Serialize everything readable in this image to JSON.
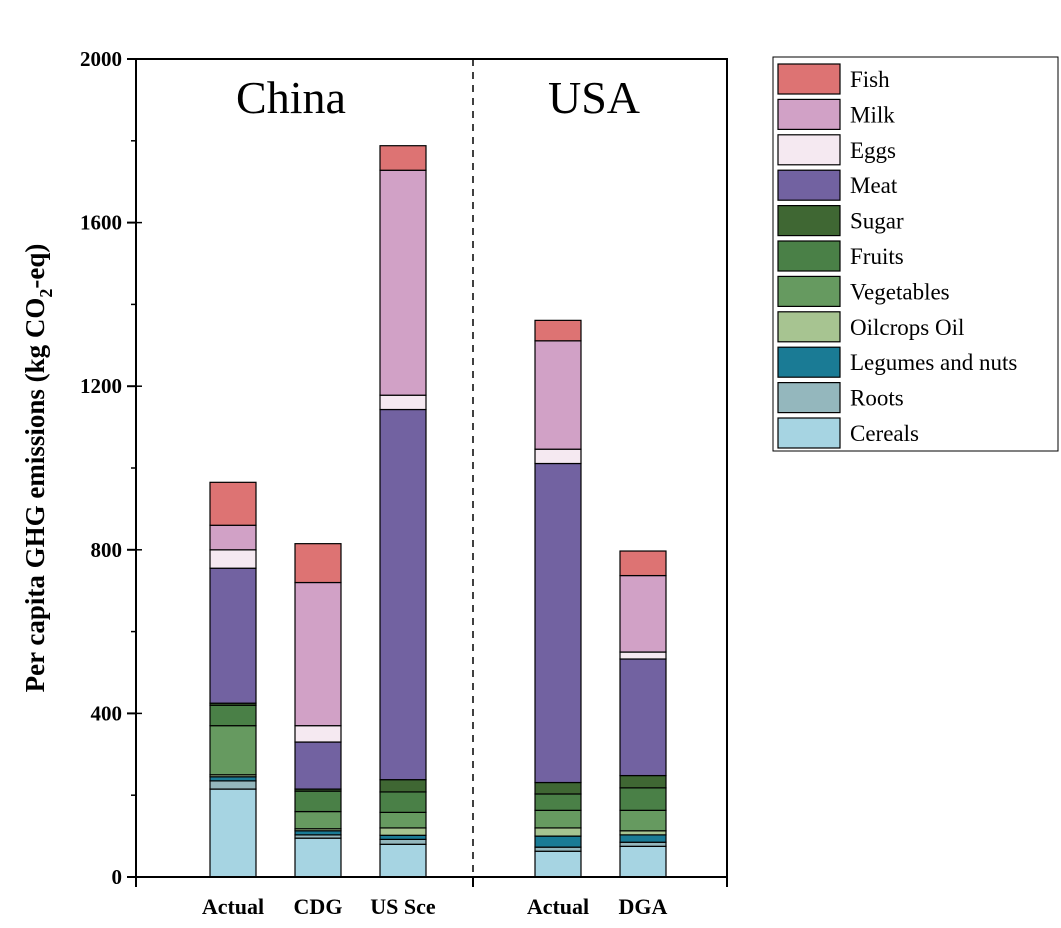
{
  "chart_data": {
    "type": "bar",
    "stacked": true,
    "ylabel_main": "Per capita GHG emissions (kg CO",
    "ylabel_sub": "2",
    "ylabel_end": "-eq)",
    "ylim": [
      0,
      2000
    ],
    "yticks": [
      0,
      400,
      800,
      1200,
      1600,
      2000
    ],
    "ytick_labels": [
      "0",
      "400",
      "800",
      "1200",
      "1600",
      "2000"
    ],
    "groups": [
      {
        "name": "China",
        "categories": [
          "Actual",
          "CDG",
          "US Sce"
        ]
      },
      {
        "name": "USA",
        "categories": [
          "Actual",
          "DGA"
        ]
      }
    ],
    "categories": [
      "Actual",
      "CDG",
      "US Sce",
      "Actual",
      "DGA"
    ],
    "series": [
      {
        "name": "Cereals",
        "color": "#a6d4e2",
        "values": [
          215,
          95,
          80,
          63,
          75
        ]
      },
      {
        "name": "Roots",
        "color": "#94b7bd",
        "values": [
          20,
          8,
          12,
          10,
          10
        ]
      },
      {
        "name": "Legumes and nuts",
        "color": "#1a7b95",
        "values": [
          10,
          10,
          10,
          27,
          18
        ]
      },
      {
        "name": "Oilcrops Oil",
        "color": "#a7c491",
        "values": [
          5,
          5,
          18,
          20,
          10
        ]
      },
      {
        "name": "Vegetables",
        "color": "#669a60",
        "values": [
          120,
          42,
          38,
          43,
          50
        ]
      },
      {
        "name": "Fruits",
        "color": "#4a8047",
        "values": [
          50,
          50,
          50,
          40,
          55
        ]
      },
      {
        "name": "Sugar",
        "color": "#3f6733",
        "values": [
          5,
          5,
          30,
          28,
          30
        ]
      },
      {
        "name": "Meat",
        "color": "#7262a1",
        "values": [
          330,
          115,
          905,
          780,
          285
        ]
      },
      {
        "name": "Eggs",
        "color": "#f5e9f1",
        "values": [
          45,
          40,
          35,
          35,
          17
        ]
      },
      {
        "name": "Milk",
        "color": "#d1a1c6",
        "values": [
          60,
          350,
          550,
          265,
          187
        ]
      },
      {
        "name": "Fish",
        "color": "#dd7373",
        "values": [
          105,
          95,
          60,
          50,
          60
        ]
      }
    ],
    "totals": [
      965,
      815,
      1788,
      1361,
      797
    ],
    "legend": [
      "Fish",
      "Milk",
      "Eggs",
      "Meat",
      "Sugar",
      "Fruits",
      "Vegetables",
      "Oilcrops Oil",
      "Legumes and nuts",
      "Roots",
      "Cereals"
    ],
    "legend_position": "right"
  }
}
